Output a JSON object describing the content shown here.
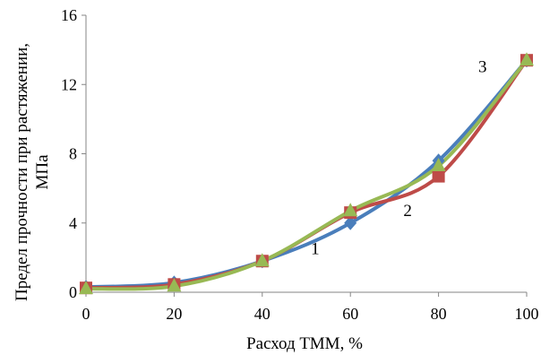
{
  "chart_data": {
    "type": "line",
    "xlabel": "Расход ТММ, %",
    "ylabel_line1": "Предел прочности при растяжении,",
    "ylabel_line2": "МПа",
    "xlim": [
      0,
      100
    ],
    "ylim": [
      0,
      16
    ],
    "x_ticks": [
      "0",
      "20",
      "40",
      "60",
      "80",
      "100"
    ],
    "y_ticks": [
      "0",
      "4",
      "8",
      "12",
      "16"
    ],
    "grid": false,
    "smooth": true,
    "x": [
      0,
      20,
      40,
      60,
      80,
      100
    ],
    "series": [
      {
        "name": "1",
        "color": "#4a7ebb",
        "marker": "diamond",
        "values": [
          0.3,
          0.55,
          1.8,
          4.0,
          7.6,
          13.4
        ],
        "label_at": [
          52,
          2.2
        ]
      },
      {
        "name": "2",
        "color": "#be4b48",
        "marker": "square",
        "values": [
          0.25,
          0.45,
          1.8,
          4.6,
          6.7,
          13.4
        ],
        "label_at": [
          73,
          4.4
        ]
      },
      {
        "name": "3",
        "color": "#98b954",
        "marker": "triangle",
        "values": [
          0.2,
          0.35,
          1.8,
          4.7,
          7.3,
          13.4
        ],
        "label_at": [
          90,
          12.7
        ]
      }
    ]
  }
}
